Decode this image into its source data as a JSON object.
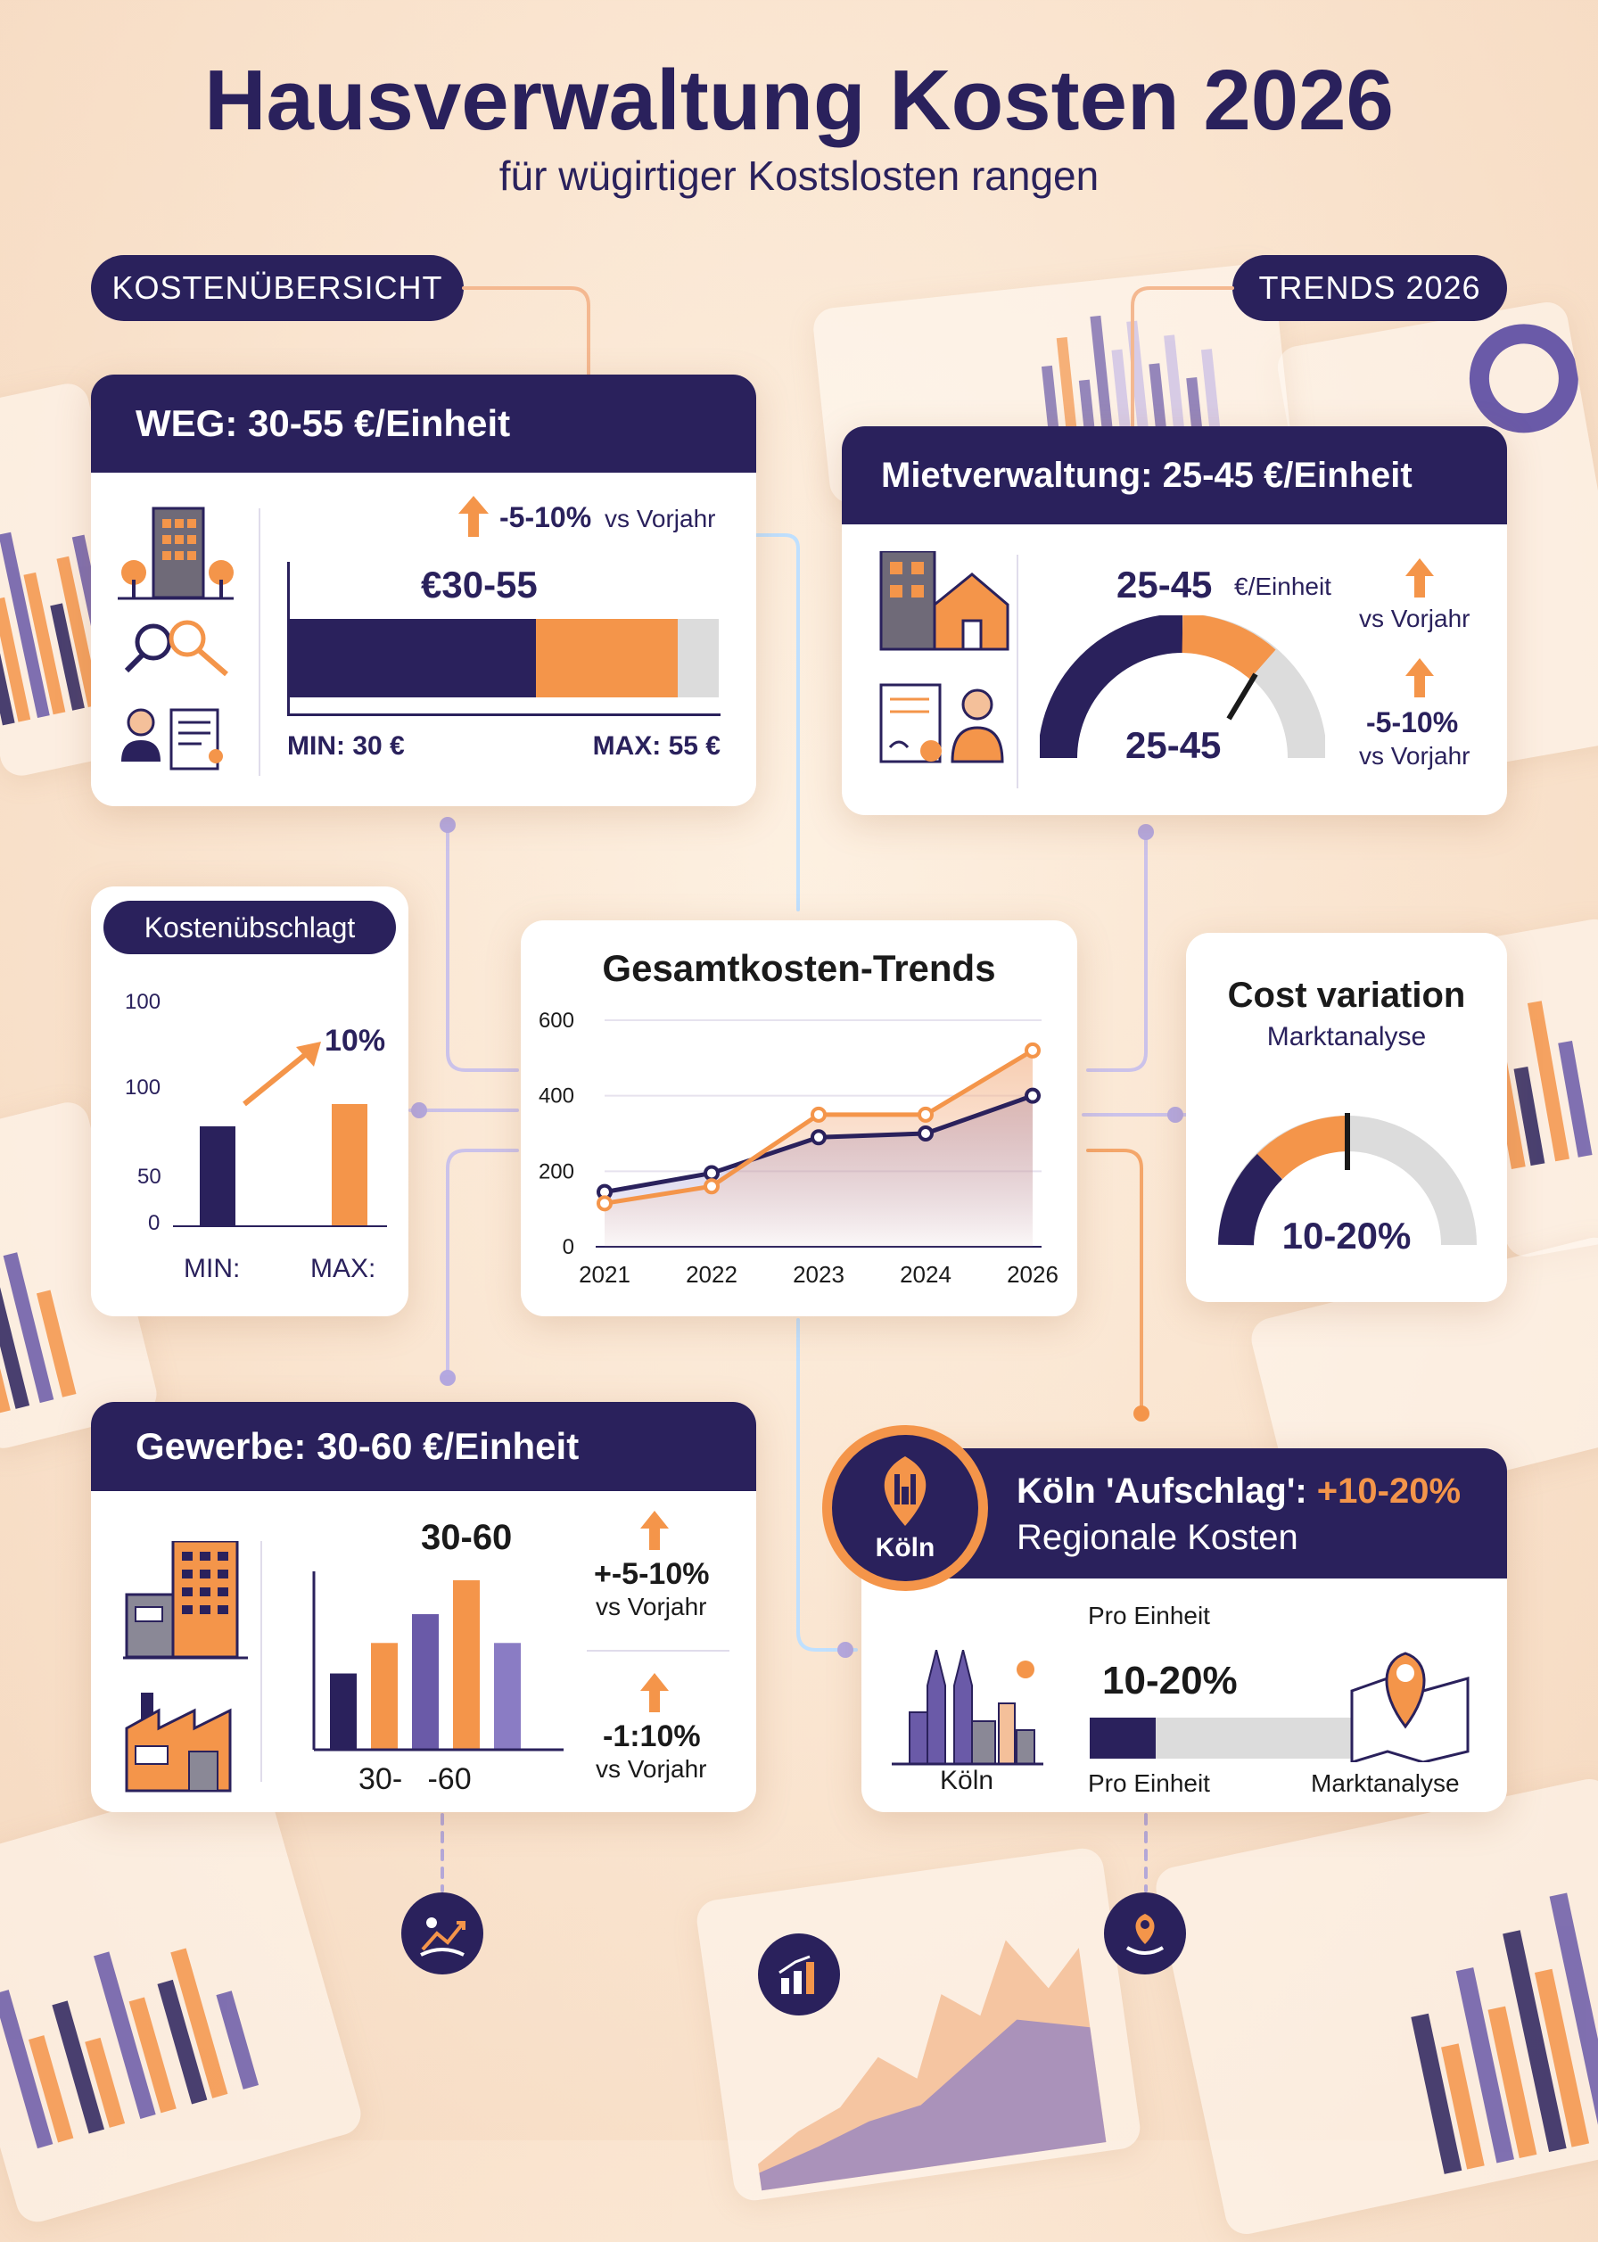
{
  "title": "Hausverwaltung Kosten 2026",
  "subtitle": "für wügirtiger Kostslosten rangen",
  "labels": {
    "overview": "KOSTENÜBERSICHT",
    "trends": "TRENDS 2026"
  },
  "weg": {
    "title": "WEG: 30-55 €/Einheit",
    "change": "-5-10%",
    "change_suffix": "vs Vorjahr",
    "range": "€30-55",
    "min": "MIN: 30 €",
    "max": "MAX: 55 €",
    "min_value": 30,
    "max_value": 55,
    "split_value": 48,
    "scale_max": 60
  },
  "miet": {
    "title": "Mietverwaltung: 25-45 €/Einheit",
    "range": "25-45",
    "unit": "€/Einheit",
    "gauge_label": "25-45",
    "trend1": "vs Vorjahr",
    "trend2_value": "-5-10%",
    "trend2_label": "vs Vorjahr"
  },
  "surcharge": {
    "title": "Kostenübschlagt",
    "ticks": [
      "100",
      "100",
      "50",
      "0"
    ],
    "change": "10%",
    "min_label": "MIN:",
    "max_label": "MAX:",
    "min_value": 75,
    "max_value": 92
  },
  "chart_data": {
    "type": "line",
    "title": "Gesamtkosten-Trends",
    "x": [
      "2021",
      "2022",
      "2023",
      "2024",
      "2026"
    ],
    "yticks": [
      "600",
      "400",
      "200",
      "0"
    ],
    "ylim": [
      0,
      600
    ],
    "series": [
      {
        "color": "#2a215c",
        "values": [
          145,
          195,
          290,
          300,
          400
        ]
      },
      {
        "color": "#f4954a",
        "values": [
          115,
          160,
          350,
          350,
          520
        ]
      }
    ]
  },
  "variation": {
    "title": "Cost variation",
    "subtitle": "Marktanalyse",
    "range": "10-20%"
  },
  "gewerbe": {
    "title": "Gewerbe: 30-60 €/Einheit",
    "range": "30-60",
    "axis_label": "30-   -60",
    "bars": [
      45,
      63,
      80,
      100,
      63
    ],
    "stat1_value": "+-5-10%",
    "stat1_label": "vs Vorjahr",
    "stat2_value": "-1:10%",
    "stat2_label": "vs Vorjahr"
  },
  "koeln": {
    "title_prefix": "Köln 'Aufschlag': ",
    "title_value": "+10-20%",
    "subtitle": "Regionale Kosten",
    "badge": "Köln",
    "pro_top": "Pro Einheit",
    "range": "10-20%",
    "city": "Köln",
    "pro_bottom": "Pro Einheit",
    "market": "Marktanalyse",
    "fill_pct": 25
  },
  "colors": {
    "navy": "#2a215c",
    "orange": "#f4954a",
    "purple": "#6a5aa8",
    "grey": "#dcdcdc"
  }
}
